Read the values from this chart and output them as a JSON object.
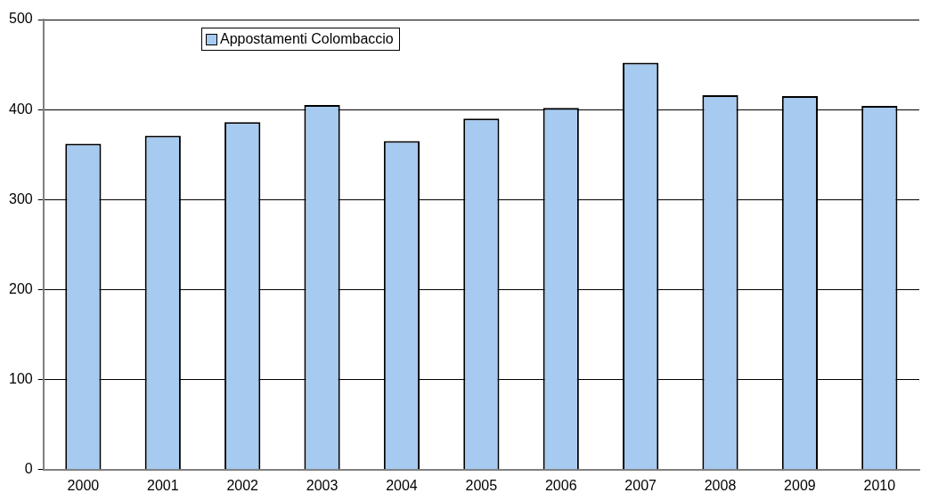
{
  "chart_data": {
    "type": "bar",
    "categories": [
      "2000",
      "2001",
      "2002",
      "2003",
      "2004",
      "2005",
      "2006",
      "2007",
      "2008",
      "2009",
      "2010"
    ],
    "series": [
      {
        "name": "Appostamenti Colombaccio",
        "color": "#a6caf0",
        "values": [
          362,
          371,
          386,
          405,
          365,
          390,
          402,
          452,
          416,
          415,
          404
        ]
      }
    ],
    "ylim": [
      0,
      500
    ],
    "yticks": [
      0,
      100,
      200,
      300,
      400,
      500
    ],
    "grid": "y",
    "legend": "top left"
  }
}
